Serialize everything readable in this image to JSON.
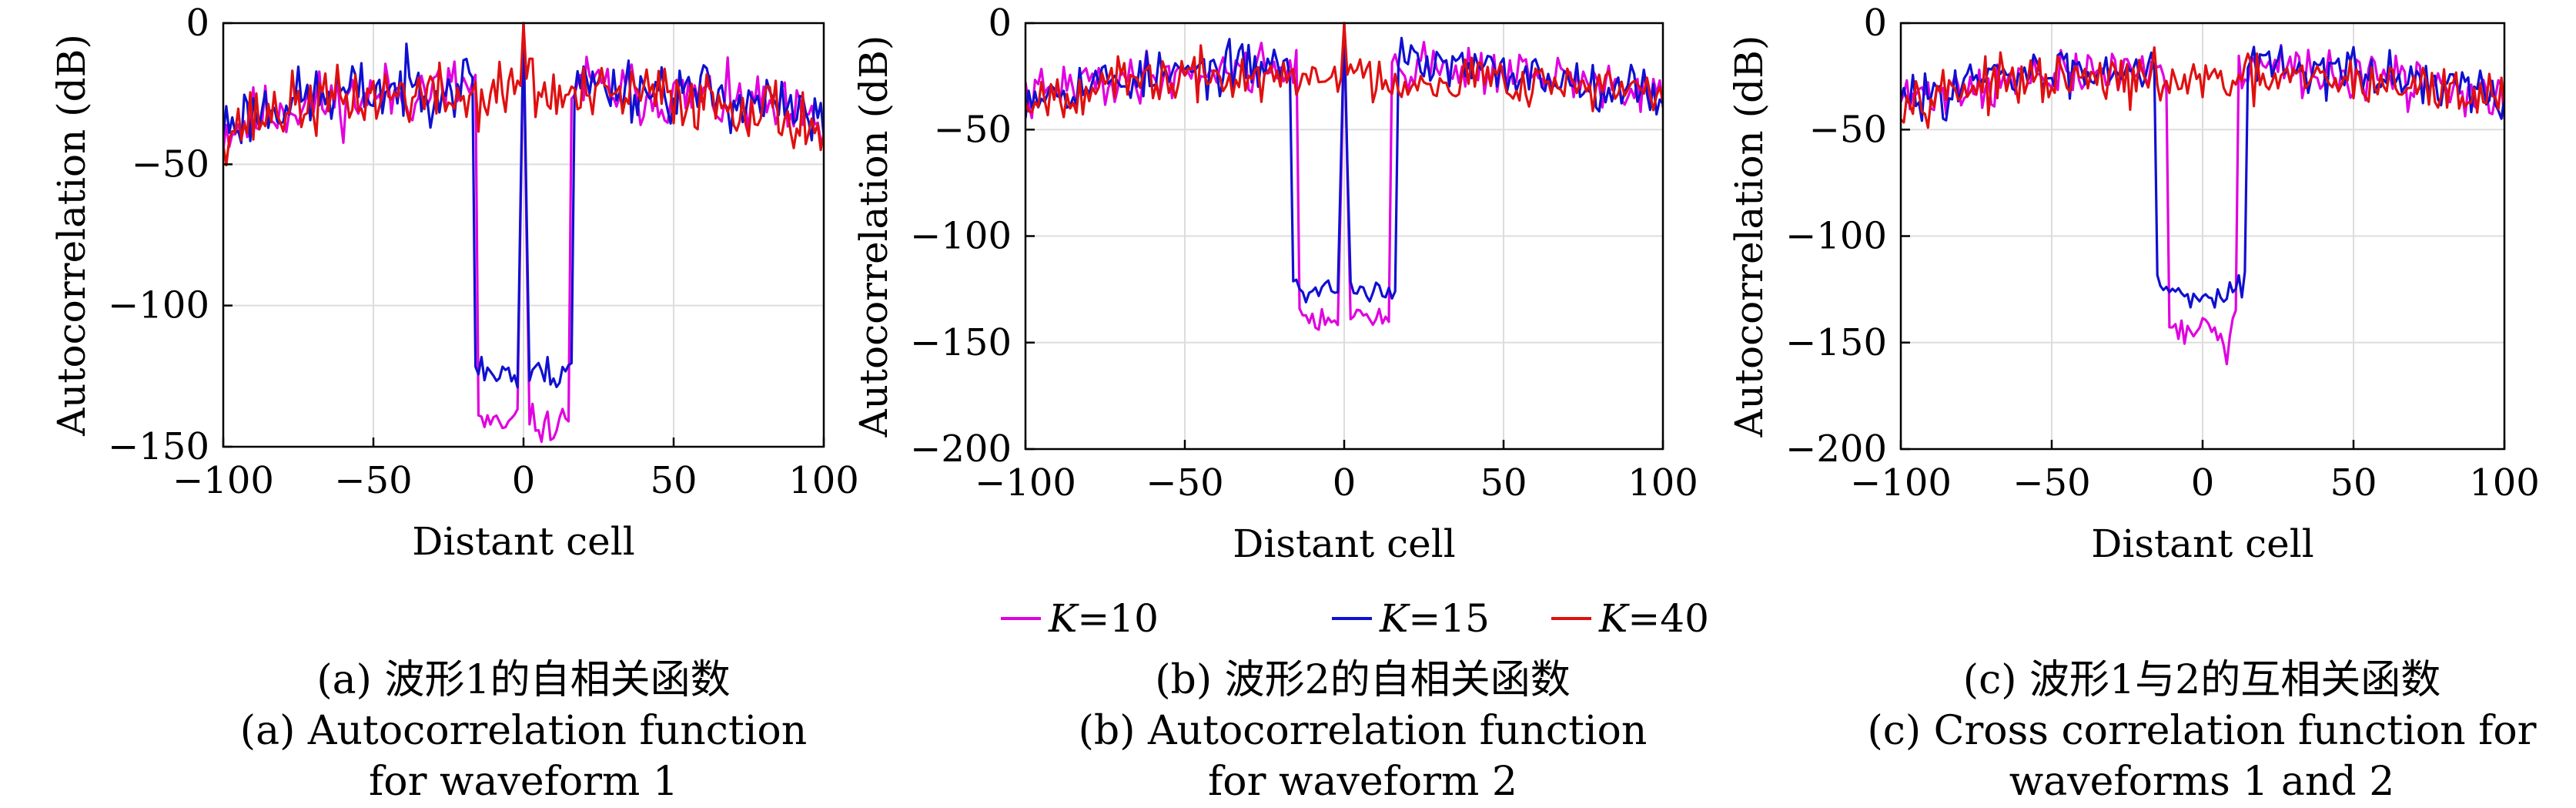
{
  "colors": {
    "K10": "#e000e0",
    "K15": "#1010d0",
    "K40": "#e01010",
    "grid": "#dddddd"
  },
  "legend": [
    {
      "var": "K",
      "value": "=10",
      "key": "K10"
    },
    {
      "var": "K",
      "value": "=15",
      "key": "K15"
    },
    {
      "var": "K",
      "value": "=40",
      "key": "K40"
    }
  ],
  "captions": [
    {
      "cn": "(a) 波形1的自相关函数",
      "en1": "(a) Autocorrelation function",
      "en2": "for waveform 1"
    },
    {
      "cn": "(b) 波形2的自相关函数",
      "en1": "(b) Autocorrelation function",
      "en2": "for waveform 2"
    },
    {
      "cn": "(c) 波形1与2的互相关函数",
      "en1": "(c) Cross correlation function for",
      "en2": "waveforms 1 and 2"
    }
  ],
  "chart_data": [
    {
      "type": "line",
      "xlabel": "Distant cell",
      "ylabel": "Autocorrelation (dB)",
      "xlim": [
        -100,
        100
      ],
      "ylim": [
        -150,
        0
      ],
      "xticks": [
        "−100",
        "−50",
        "0",
        "50",
        "100"
      ],
      "xtick_values": [
        -100,
        -50,
        0,
        50,
        100
      ],
      "yticks": [
        "0",
        "−50",
        "−100",
        "−150"
      ],
      "ytick_values": [
        0,
        -50,
        -100,
        -150
      ],
      "grid": true,
      "series": [
        {
          "name": "K=10",
          "key": "K10",
          "seed": 11,
          "x": [
            -100,
            -80,
            -60,
            -40,
            -25,
            -16,
            -15,
            -10,
            -5,
            -2,
            0,
            2,
            5,
            10,
            15,
            16,
            25,
            40,
            60,
            80,
            100
          ],
          "y": [
            -38,
            -30,
            -27,
            -25,
            -23,
            -22,
            -140,
            -143,
            -143,
            -140,
            0,
            -140,
            -143,
            -143,
            -140,
            -22,
            -23,
            -25,
            -27,
            -30,
            -38
          ]
        },
        {
          "name": "K=15",
          "key": "K15",
          "seed": 23,
          "x": [
            -100,
            -80,
            -60,
            -40,
            -25,
            -17,
            -16,
            -10,
            -5,
            -2,
            0,
            2,
            5,
            10,
            16,
            17,
            25,
            40,
            60,
            80,
            100
          ],
          "y": [
            -36,
            -28,
            -25,
            -23,
            -22,
            -21,
            -120,
            -125,
            -122,
            -128,
            0,
            -128,
            -122,
            -125,
            -120,
            -21,
            -22,
            -23,
            -25,
            -28,
            -36
          ]
        },
        {
          "name": "K=40",
          "key": "K40",
          "seed": 37,
          "x": [
            -100,
            -80,
            -60,
            -40,
            -20,
            -5,
            -1,
            0,
            1,
            5,
            20,
            40,
            60,
            80,
            100
          ],
          "y": [
            -38,
            -30,
            -27,
            -25,
            -27,
            -25,
            -18,
            0,
            -18,
            -25,
            -27,
            -25,
            -27,
            -30,
            -38
          ]
        }
      ]
    },
    {
      "type": "line",
      "xlabel": "Distant cell",
      "ylabel": "Autocorrelation (dB)",
      "xlim": [
        -100,
        100
      ],
      "ylim": [
        -200,
        0
      ],
      "xticks": [
        "−100",
        "−50",
        "0",
        "50",
        "100"
      ],
      "xtick_values": [
        -100,
        -50,
        0,
        50,
        100
      ],
      "yticks": [
        "0",
        "−50",
        "−100",
        "−150",
        "−200"
      ],
      "ytick_values": [
        0,
        -50,
        -100,
        -150,
        -200
      ],
      "grid": true,
      "series": [
        {
          "name": "K=10",
          "key": "K10",
          "seed": 41,
          "x": [
            -100,
            -80,
            -60,
            -40,
            -25,
            -15,
            -14,
            -10,
            -5,
            -2,
            0,
            2,
            5,
            10,
            14,
            15,
            25,
            40,
            60,
            80,
            100
          ],
          "y": [
            -35,
            -28,
            -25,
            -22,
            -20,
            -20,
            -138,
            -140,
            -138,
            -140,
            0,
            -140,
            -138,
            -140,
            -138,
            -20,
            -20,
            -22,
            -25,
            -28,
            -35
          ]
        },
        {
          "name": "K=15",
          "key": "K15",
          "seed": 53,
          "x": [
            -100,
            -80,
            -60,
            -40,
            -25,
            -17,
            -16,
            -10,
            -5,
            -2,
            0,
            2,
            5,
            10,
            16,
            17,
            25,
            40,
            60,
            80,
            100
          ],
          "y": [
            -33,
            -28,
            -25,
            -22,
            -20,
            -18,
            -125,
            -126,
            -124,
            -126,
            0,
            -126,
            -124,
            -126,
            -125,
            -18,
            -20,
            -22,
            -25,
            -28,
            -33
          ]
        },
        {
          "name": "K=40",
          "key": "K40",
          "seed": 67,
          "x": [
            -100,
            -80,
            -60,
            -40,
            -20,
            -5,
            -1,
            0,
            1,
            5,
            20,
            40,
            60,
            80,
            100
          ],
          "y": [
            -35,
            -30,
            -27,
            -25,
            -27,
            -26,
            -20,
            0,
            -20,
            -26,
            -27,
            -25,
            -27,
            -30,
            -35
          ]
        }
      ]
    },
    {
      "type": "line",
      "xlabel": "Distant cell",
      "ylabel": "Autocorrelation (dB)",
      "xlim": [
        -100,
        100
      ],
      "ylim": [
        -200,
        0
      ],
      "xticks": [
        "−100",
        "−50",
        "0",
        "50",
        "100"
      ],
      "xtick_values": [
        -100,
        -50,
        0,
        50,
        100
      ],
      "yticks": [
        "0",
        "−50",
        "−100",
        "−150",
        "−200"
      ],
      "ytick_values": [
        0,
        -50,
        -100,
        -150,
        -200
      ],
      "grid": true,
      "series": [
        {
          "name": "K=10",
          "key": "K10",
          "seed": 71,
          "x": [
            -100,
            -80,
            -60,
            -40,
            -25,
            -12,
            -11,
            -5,
            0,
            5,
            8,
            10,
            11,
            12,
            25,
            40,
            60,
            80,
            100
          ],
          "y": [
            -36,
            -30,
            -27,
            -24,
            -22,
            -22,
            -140,
            -145,
            -143,
            -145,
            -155,
            -140,
            -140,
            -20,
            -22,
            -24,
            -27,
            -30,
            -36
          ]
        },
        {
          "name": "K=15",
          "key": "K15",
          "seed": 83,
          "x": [
            -100,
            -80,
            -60,
            -40,
            -25,
            -16,
            -15,
            -10,
            -5,
            0,
            5,
            10,
            14,
            15,
            25,
            40,
            60,
            80,
            100
          ],
          "y": [
            -38,
            -28,
            -25,
            -22,
            -20,
            -18,
            -120,
            -125,
            -128,
            -130,
            -126,
            -125,
            -120,
            -18,
            -20,
            -22,
            -25,
            -28,
            -40
          ]
        },
        {
          "name": "K=40",
          "key": "K40",
          "seed": 97,
          "x": [
            -100,
            -80,
            -60,
            -40,
            -20,
            0,
            20,
            40,
            60,
            80,
            100
          ],
          "y": [
            -35,
            -30,
            -28,
            -27,
            -27,
            -28,
            -27,
            -27,
            -28,
            -32,
            -35
          ]
        }
      ]
    }
  ]
}
